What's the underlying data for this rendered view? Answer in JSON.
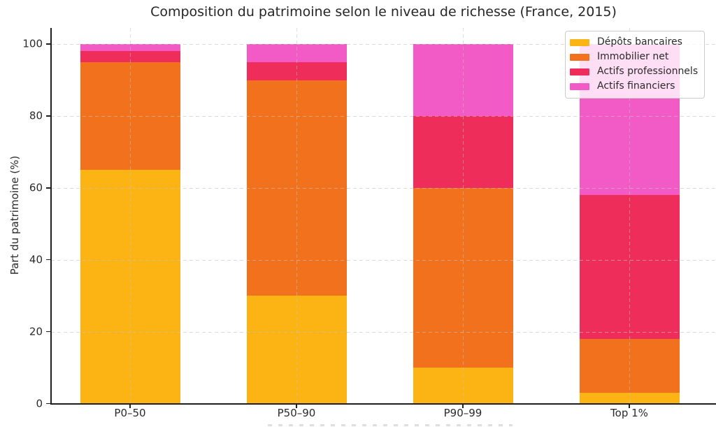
{
  "chart_data": {
    "type": "bar",
    "stacked": true,
    "title": "Composition du patrimoine selon le niveau de richesse (France, 2015)",
    "xlabel": "",
    "ylabel": "Part du patrimoine (%)",
    "categories": [
      "P0–50",
      "P50–90",
      "P90–99",
      "Top 1%"
    ],
    "series": [
      {
        "name": "Dépôts bancaires",
        "color": "#FCB414",
        "values": [
          65,
          30,
          10,
          3
        ]
      },
      {
        "name": "Immobilier net",
        "color": "#F2711D",
        "values": [
          30,
          60,
          50,
          15
        ]
      },
      {
        "name": "Actifs professionnels",
        "color": "#EF2D5A",
        "values": [
          3,
          5,
          20,
          40
        ]
      },
      {
        "name": "Actifs financiers",
        "color": "#F25AC6",
        "values": [
          2,
          5,
          20,
          42
        ]
      }
    ],
    "yticks": [
      0,
      20,
      40,
      60,
      80,
      100
    ],
    "ylim": [
      0,
      104.5
    ],
    "grid": "dashed, horizontal at yticks and vertical at category centers, drawn over bars",
    "legend_position": "upper right",
    "legend_background": "rgba(255,255,255,0.8)",
    "axis_color": "#1f1f1f",
    "text_color": "#2b2b2b"
  }
}
